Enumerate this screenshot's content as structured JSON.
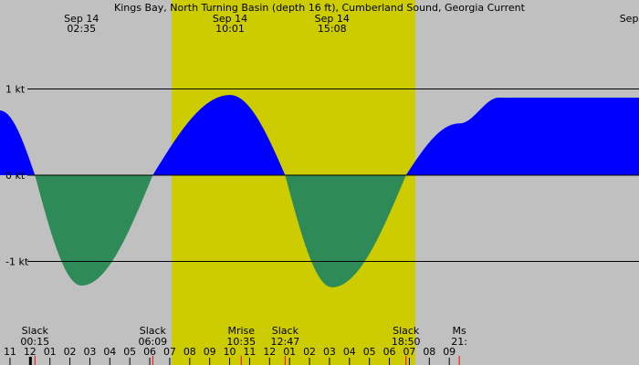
{
  "chart_data": {
    "type": "area",
    "title": "Kings Bay, North Turning Basin (depth 16 ft), Cumberland Sound, Georgia Current",
    "y_unit": "kt",
    "ylim": [
      -1.5,
      2.0
    ],
    "xlim_hours": [
      -1.5,
      30.5
    ],
    "y_ticks": [
      {
        "value": 1,
        "label": "1 kt"
      },
      {
        "value": 0,
        "label": "0 kt"
      },
      {
        "value": -1,
        "label": "-1 kt"
      }
    ],
    "hour_ticks": [
      "11",
      "12",
      "01",
      "02",
      "03",
      "04",
      "05",
      "06",
      "07",
      "08",
      "09",
      "10",
      "11",
      "12",
      "01",
      "02",
      "03",
      "04",
      "05",
      "06",
      "07",
      "08",
      "09"
    ],
    "daylight_hours": [
      7.1,
      19.3
    ],
    "top_events": [
      {
        "date": "Sep 14",
        "time": "02:35",
        "hour": 2.58
      },
      {
        "date": "Sep 14",
        "time": "10:01",
        "hour": 10.02
      },
      {
        "date": "Sep 14",
        "time": "15:08",
        "hour": 15.13
      },
      {
        "date": "Sep",
        "time": "",
        "hour": 30.0
      }
    ],
    "bottom_events": [
      {
        "label": "Slack",
        "time": "00:15",
        "hour": 0.25
      },
      {
        "label": "Slack",
        "time": "06:09",
        "hour": 6.15
      },
      {
        "label": "Mrise",
        "time": "10:35",
        "hour": 10.58
      },
      {
        "label": "Slack",
        "time": "12:47",
        "hour": 12.78
      },
      {
        "label": "Slack",
        "time": "18:50",
        "hour": 18.83
      },
      {
        "label": "Ms",
        "time": "21:",
        "hour": 21.5
      }
    ],
    "series": [
      {
        "x": [
          -1.5,
          0.25,
          2.58,
          6.15,
          10.02,
          12.78,
          15.13,
          18.83,
          21.5,
          23.5
        ],
        "y": [
          0.75,
          0.0,
          -1.28,
          0.0,
          0.93,
          0.0,
          -1.3,
          0.0,
          0.6,
          0.9
        ]
      }
    ],
    "colors": {
      "night": "#c0c0c0",
      "day": "#cccc00",
      "flood": "#0000ff",
      "ebb": "#2e8b57"
    }
  }
}
